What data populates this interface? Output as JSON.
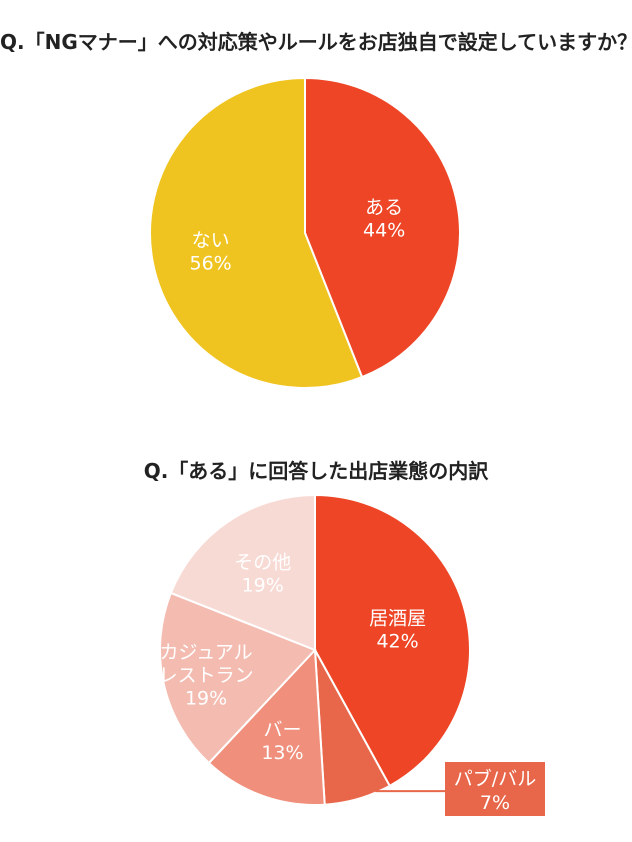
{
  "chart_data": [
    {
      "type": "pie",
      "title": "Q.「NGマナー」への対応策やルールをお店独自で設定していますか？",
      "slices": [
        {
          "label": "ある",
          "value": 44,
          "value_label": "44%",
          "color": "#ed4525"
        },
        {
          "label": "ない",
          "value": 56,
          "value_label": "56%",
          "color": "#f0c420"
        }
      ]
    },
    {
      "type": "pie",
      "title": "Q.「ある」に回答した出店業態の内訳",
      "slices": [
        {
          "label": "居酒屋",
          "value": 42,
          "value_label": "42%",
          "color": "#ed4525"
        },
        {
          "label": "パブ/バル",
          "value": 7,
          "value_label": "7%",
          "color": "#e8674a"
        },
        {
          "label": "バー",
          "value": 13,
          "value_label": "13%",
          "color": "#ef8f7c"
        },
        {
          "label": "カジュアル\nレストラン",
          "value": 19,
          "value_label": "19%",
          "color": "#f4bcb1"
        },
        {
          "label": "その他",
          "value": 19,
          "value_label": "19%",
          "color": "#f8dad4"
        }
      ]
    }
  ]
}
